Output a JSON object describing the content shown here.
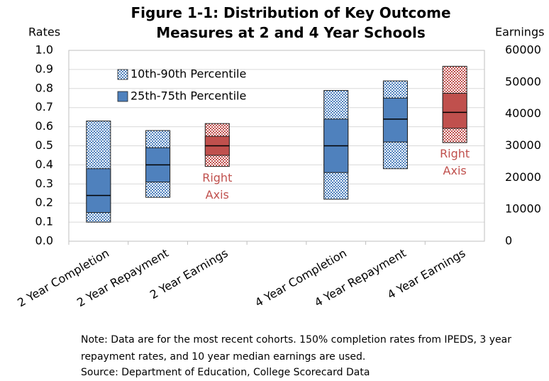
{
  "chart_data": {
    "type": "range-box",
    "title": "Figure 1-1: Distribution of Key Outcome Measures at 2 and 4 Year Schools",
    "y_label": "Rates",
    "y2_label": "Earnings",
    "categories": [
      "2 Year Completion",
      "2 Year Repayment",
      "2 Year Earnings",
      null,
      "4 Year Completion",
      "4 Year Repayment",
      "4 Year Earnings"
    ],
    "annotations": [
      null,
      null,
      "Right Axis",
      null,
      null,
      null,
      "Right Axis"
    ],
    "annotation_color": "#c0504d",
    "ylim": [
      0,
      1
    ],
    "yticks": [
      {
        "value": 0,
        "label": "0.0"
      },
      0.1,
      0.2,
      0.3,
      0.4,
      0.5,
      0.6,
      0.7,
      0.8,
      0.9,
      {
        "value": 1,
        "label": "1.0"
      }
    ],
    "y2lim": [
      0,
      60000
    ],
    "y2ticks": [
      0,
      10000,
      20000,
      30000,
      40000,
      50000,
      60000
    ],
    "grid": true,
    "series": [
      {
        "name": "10th-90th Percentile",
        "color": "#4f81bd",
        "pattern": true,
        "low": [
          0.1,
          0.23,
          null,
          null,
          0.22,
          0.38,
          null
        ],
        "high": [
          0.63,
          0.58,
          null,
          null,
          0.79,
          0.84,
          null
        ]
      },
      {
        "name": "25th-75th Percentile",
        "color": "#4f81bd",
        "pattern": false,
        "low": [
          0.15,
          0.31,
          null,
          null,
          0.36,
          0.52,
          null
        ],
        "high": [
          0.38,
          0.49,
          null,
          null,
          0.64,
          0.75,
          null
        ],
        "median": [
          0.24,
          0.4,
          null,
          null,
          0.5,
          0.64,
          null
        ]
      },
      {
        "axis": "y2",
        "color": "#c0504d",
        "pattern": true,
        "low": [
          null,
          null,
          23500,
          null,
          null,
          null,
          31000
        ],
        "high": [
          null,
          null,
          37000,
          null,
          null,
          null,
          55000
        ]
      },
      {
        "axis": "y2",
        "color": "#c0504d",
        "pattern": false,
        "low": [
          null,
          null,
          27000,
          null,
          null,
          null,
          35500
        ],
        "high": [
          null,
          null,
          33000,
          null,
          null,
          null,
          46500
        ],
        "median": [
          null,
          null,
          30000,
          null,
          null,
          null,
          40500
        ]
      }
    ]
  },
  "note": "Note: Data are for the most recent cohorts. 150% completion rates from IPEDS, 3 year repayment rates, and 10 year median earnings are used.",
  "source": "Source: Department of Education, College Scorecard Data"
}
